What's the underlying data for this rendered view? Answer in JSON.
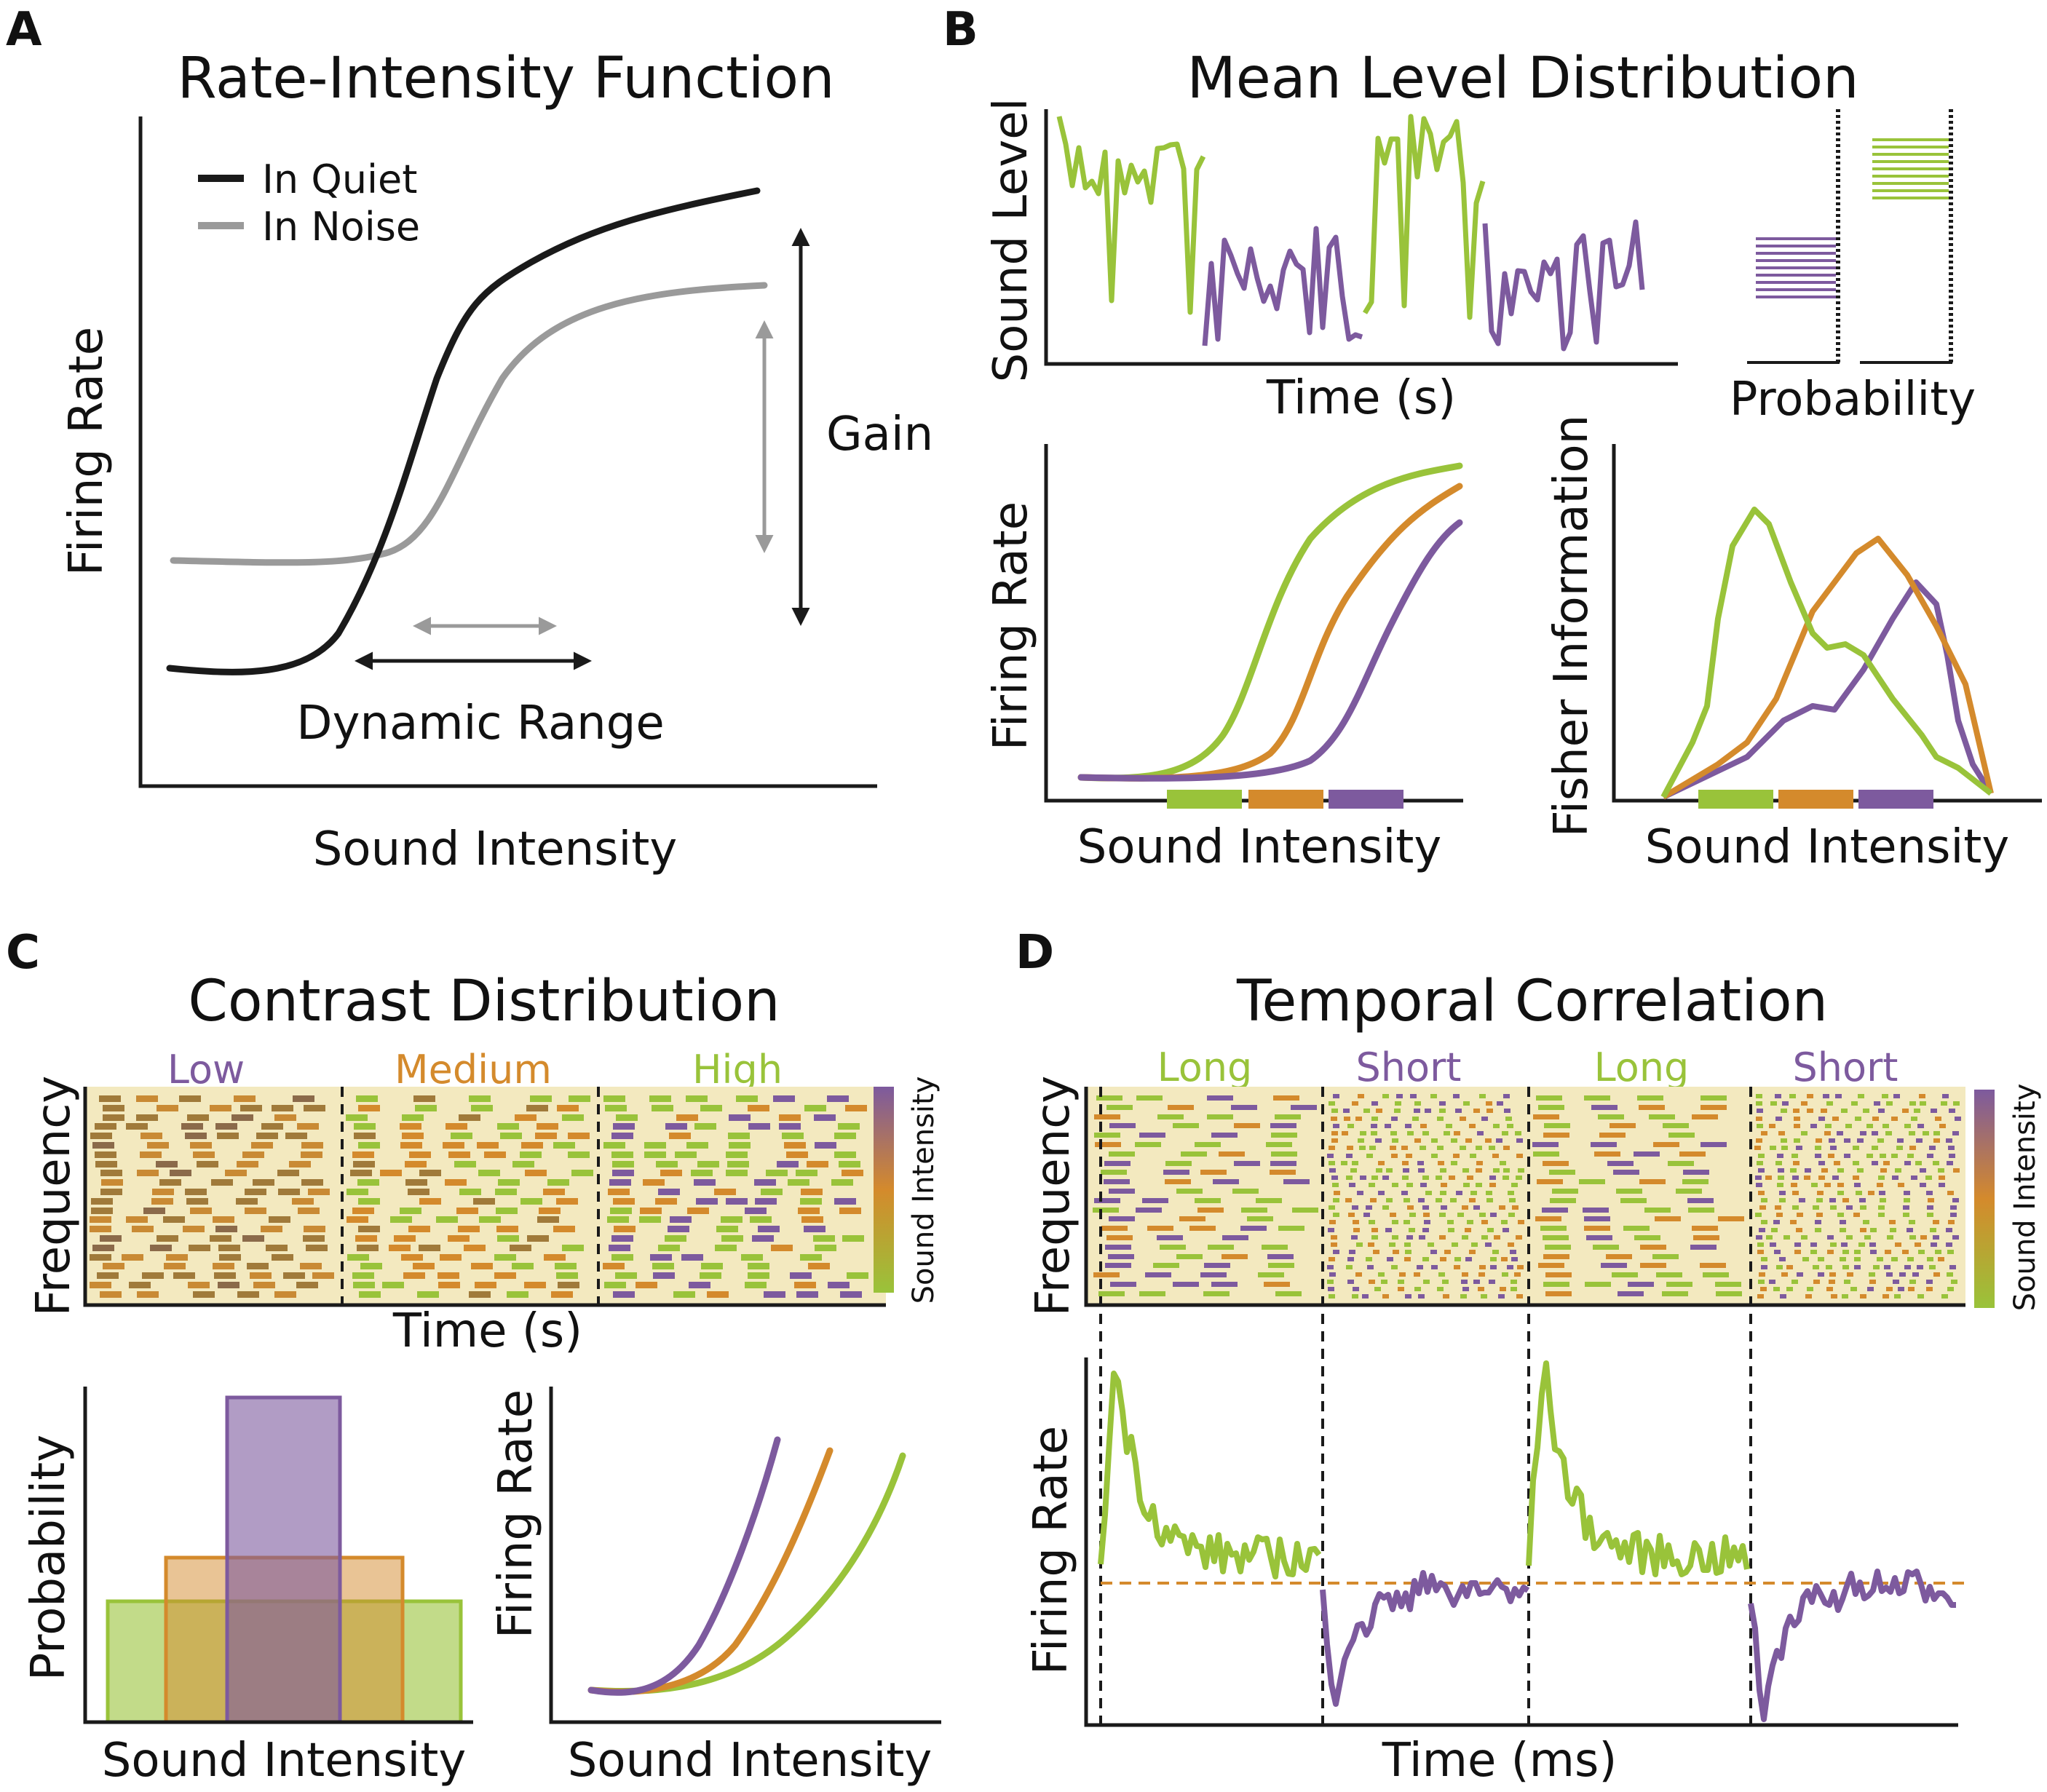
{
  "colors": {
    "green": "#99c33a",
    "orange": "#d48a2c",
    "purple": "#7d5a9e",
    "black": "#1a1a1a",
    "gray": "#9a9a9a",
    "spectro_bg": "#f3e9bf"
  },
  "panels": {
    "A": {
      "letter": "A",
      "title": "Rate-Intensity Function",
      "legend_quiet": "In Quiet",
      "legend_noise": "In Noise",
      "xlabel": "Sound Intensity",
      "ylabel": "Firing Rate",
      "gain_label": "Gain",
      "dynamic_range_label": "Dynamic Range"
    },
    "B": {
      "letter": "B",
      "title": "Mean Level Distribution",
      "trace_ylabel": "Sound Level",
      "trace_xlabel": "Time (s)",
      "hist_xlabel": "Probability",
      "rate_ylabel": "Firing Rate",
      "rate_xlabel": "Sound Intensity",
      "fisher_ylabel": "Fisher Information",
      "fisher_xlabel": "Sound Intensity"
    },
    "C": {
      "letter": "C",
      "title": "Contrast Distribution",
      "seg_low": "Low",
      "seg_medium": "Medium",
      "seg_high": "High",
      "spectro_ylabel": "Frequency",
      "spectro_xlabel": "Time (s)",
      "colorbar_label": "Sound Intensity",
      "prob_ylabel": "Probability",
      "prob_xlabel": "Sound Intensity",
      "rate_ylabel": "Firing Rate",
      "rate_xlabel": "Sound Intensity"
    },
    "D": {
      "letter": "D",
      "title": "Temporal Correlation",
      "seg1": "Long",
      "seg2": "Short",
      "seg3": "Long",
      "seg4": "Short",
      "spectro_ylabel": "Frequency",
      "colorbar_label": "Sound Intensity",
      "rate_ylabel": "Firing Rate",
      "rate_xlabel": "Time (ms)"
    }
  }
}
